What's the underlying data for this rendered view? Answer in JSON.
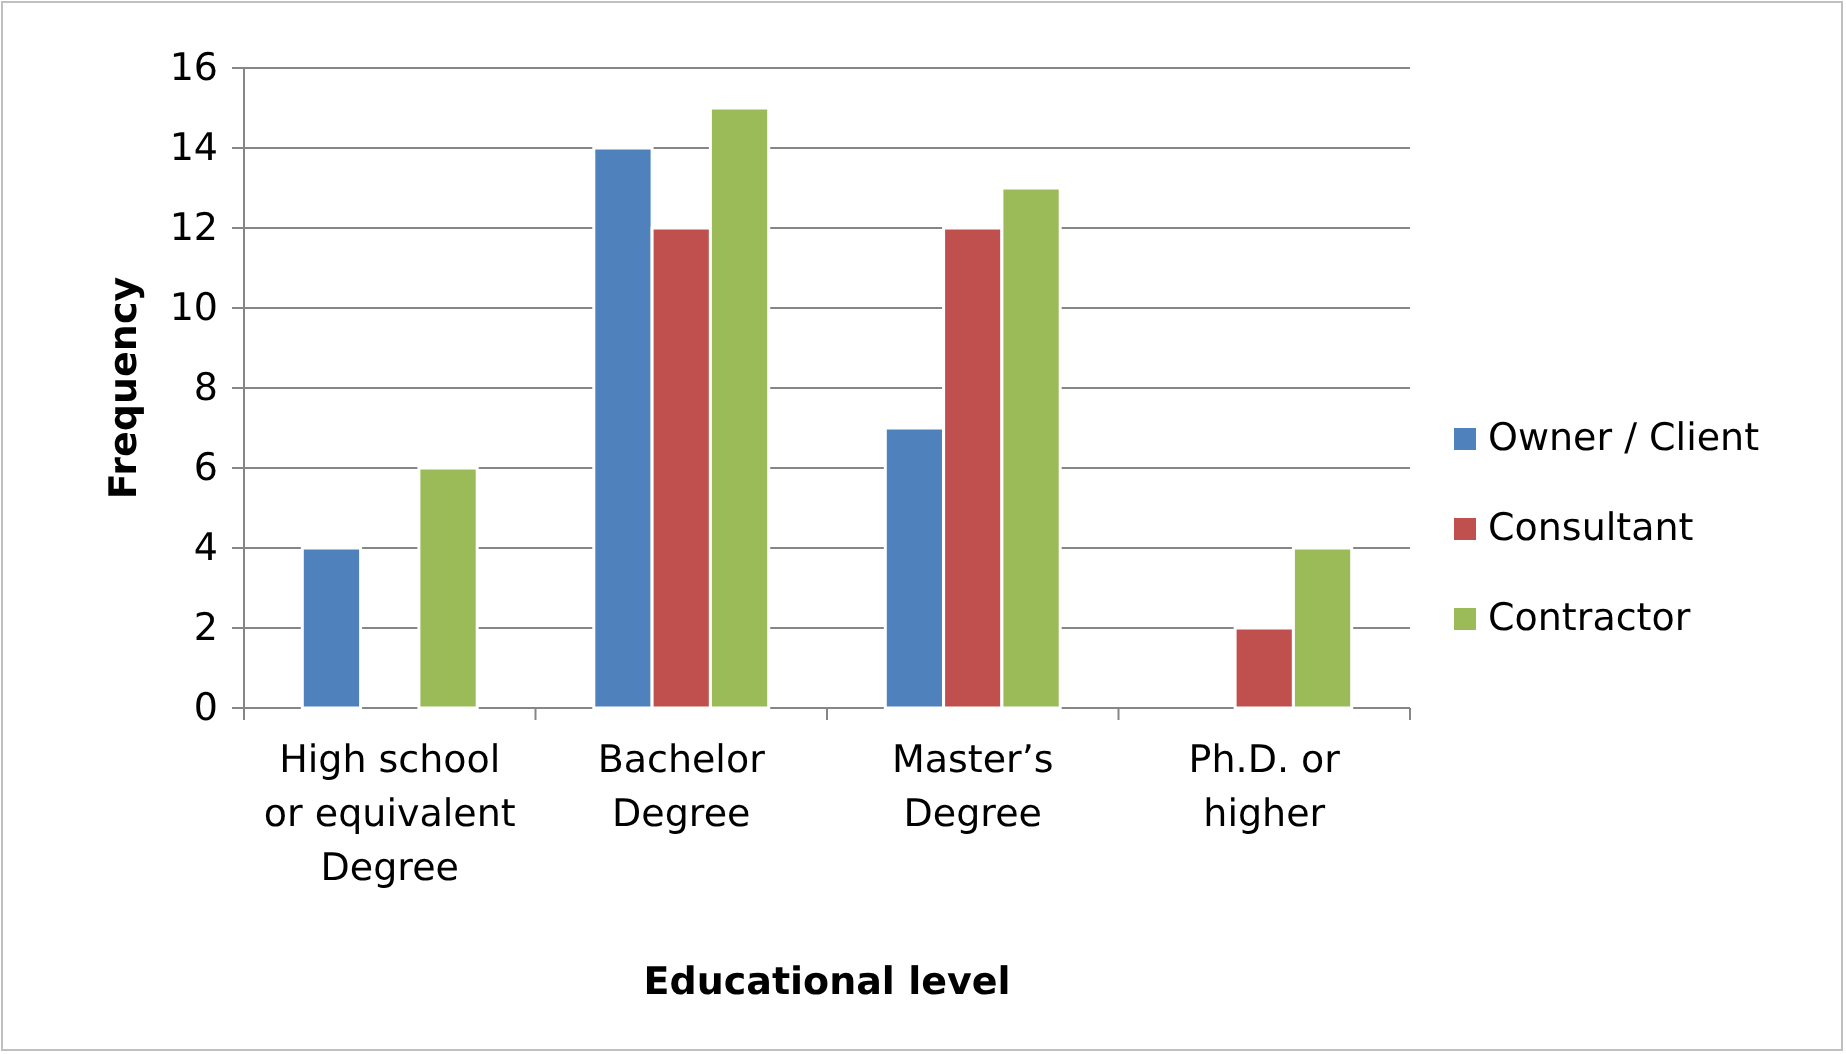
{
  "chart_data": {
    "type": "bar",
    "xlabel": "Educational level",
    "ylabel": "Frequency",
    "categories": [
      "High school\nor equivalent\nDegree",
      "Bachelor\nDegree",
      "Master’s\nDegree",
      "Ph.D. or\nhigher"
    ],
    "series": [
      {
        "name": "Owner / Client",
        "color": "#4f81bd",
        "values": [
          4,
          14,
          7,
          0
        ]
      },
      {
        "name": "Consultant",
        "color": "#c0504d",
        "values": [
          0,
          12,
          12,
          2
        ]
      },
      {
        "name": "Contractor",
        "color": "#9bbb59",
        "values": [
          6,
          15,
          13,
          4
        ]
      }
    ],
    "ylim": [
      0,
      16
    ],
    "yticks": [
      0,
      2,
      4,
      6,
      8,
      10,
      12,
      14,
      16
    ],
    "grid": "y",
    "legend": "right"
  }
}
